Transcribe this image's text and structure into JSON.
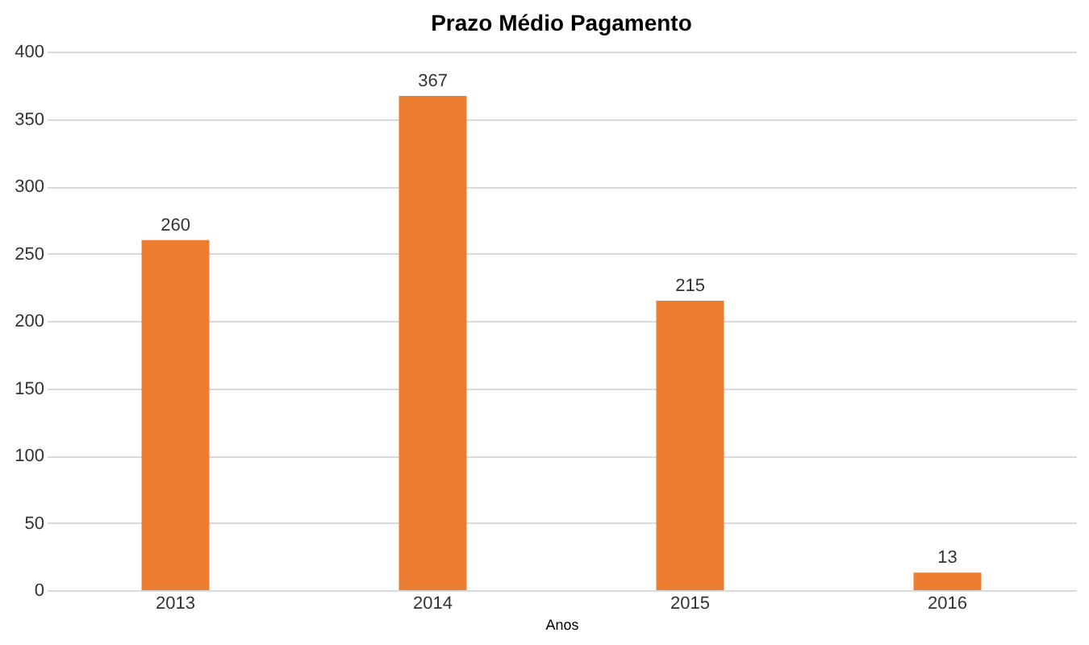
{
  "chart_data": {
    "type": "bar",
    "title": "Prazo Médio Pagamento",
    "xlabel": "Anos",
    "categories": [
      "2013",
      "2014",
      "2015",
      "2016"
    ],
    "values": [
      260,
      367,
      215,
      13
    ],
    "color": "#ed7d31",
    "ylim": [
      0,
      400
    ],
    "yticks": [
      0,
      50,
      100,
      150,
      200,
      250,
      300,
      350,
      400
    ],
    "grid": "y",
    "data_labels": true
  }
}
